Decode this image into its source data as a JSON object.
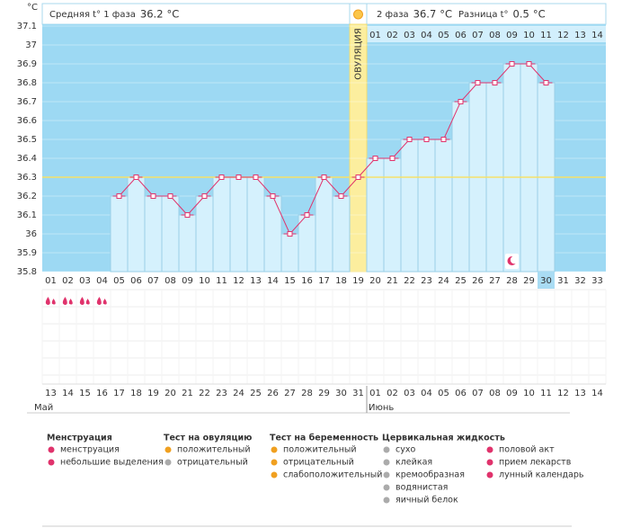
{
  "chart_data": {
    "type": "line",
    "y_unit": "°C",
    "header": {
      "phase1": {
        "label": "Средняя t° 1 фаза",
        "value": 36.2,
        "unit": "°C"
      },
      "phase2": {
        "label": "2 фаза",
        "value": 36.7,
        "unit": "°C"
      },
      "diff": {
        "label": "Разница t°",
        "value": 0.5,
        "unit": "°C"
      }
    },
    "categories": [
      "01",
      "02",
      "03",
      "04",
      "05",
      "06",
      "07",
      "08",
      "09",
      "10",
      "11",
      "12",
      "13",
      "14",
      "15",
      "16",
      "17",
      "18",
      "19",
      "20",
      "21",
      "22",
      "23",
      "24",
      "25",
      "26",
      "27",
      "28",
      "29",
      "30",
      "31",
      "32",
      "33"
    ],
    "values": [
      null,
      null,
      null,
      null,
      36.2,
      36.3,
      36.2,
      36.2,
      36.1,
      36.2,
      36.3,
      36.3,
      36.3,
      36.2,
      36.0,
      36.1,
      36.3,
      36.2,
      36.3,
      36.4,
      36.4,
      36.5,
      36.5,
      36.5,
      36.7,
      36.8,
      36.8,
      36.9,
      36.9,
      36.8,
      null,
      null,
      null
    ],
    "color": "#e0336c",
    "ylim": [
      35.8,
      37.1
    ],
    "yticks": [
      35.8,
      35.9,
      36,
      36.1,
      36.2,
      36.3,
      36.4,
      36.5,
      36.6,
      36.7,
      36.8,
      36.9,
      37,
      37.1
    ],
    "coverline": 36.3,
    "ovulation": {
      "index": 18,
      "label": "ОВУЛЯЦИЯ"
    },
    "phase2_days": [
      "01",
      "02",
      "03",
      "04",
      "05",
      "06",
      "07",
      "08",
      "09",
      "10",
      "11",
      "12",
      "13",
      "14"
    ],
    "today_index": 29,
    "menstruation_days": [
      0,
      1,
      2,
      3
    ],
    "moon_days": [
      27
    ],
    "dates": [
      {
        "label": "13",
        "weekend": false
      },
      {
        "label": "14",
        "weekend": false
      },
      {
        "label": "15",
        "weekend": false
      },
      {
        "label": "16",
        "weekend": false
      },
      {
        "label": "17",
        "weekend": false
      },
      {
        "label": "18",
        "weekend": true
      },
      {
        "label": "19",
        "weekend": true
      },
      {
        "label": "20",
        "weekend": false
      },
      {
        "label": "21",
        "weekend": false
      },
      {
        "label": "22",
        "weekend": false
      },
      {
        "label": "23",
        "weekend": false
      },
      {
        "label": "24",
        "weekend": false
      },
      {
        "label": "25",
        "weekend": true
      },
      {
        "label": "26",
        "weekend": true
      },
      {
        "label": "27",
        "weekend": false
      },
      {
        "label": "28",
        "weekend": false
      },
      {
        "label": "29",
        "weekend": false
      },
      {
        "label": "30",
        "weekend": false
      },
      {
        "label": "31",
        "weekend": false
      },
      {
        "label": "01",
        "weekend": true
      },
      {
        "label": "02",
        "weekend": true
      },
      {
        "label": "03",
        "weekend": false
      },
      {
        "label": "04",
        "weekend": false
      },
      {
        "label": "05",
        "weekend": false
      },
      {
        "label": "06",
        "weekend": false
      },
      {
        "label": "07",
        "weekend": false
      },
      {
        "label": "08",
        "weekend": true
      },
      {
        "label": "09",
        "weekend": true
      },
      {
        "label": "10",
        "weekend": false
      },
      {
        "label": "11",
        "weekend": false
      },
      {
        "label": "12",
        "weekend": false
      },
      {
        "label": "13",
        "weekend": false
      },
      {
        "label": "14",
        "weekend": false
      }
    ],
    "months": [
      {
        "label": "Май",
        "index": 0
      },
      {
        "label": "Июнь",
        "index": 19
      }
    ],
    "legend": [
      {
        "title": "Менструация",
        "items": [
          "менструация",
          "небольшие выделения"
        ]
      },
      {
        "title": "Тест на овуляцию",
        "items": [
          "положительный",
          "отрицательный"
        ]
      },
      {
        "title": "Тест на беременность",
        "items": [
          "положительный",
          "отрицательный",
          "слабоположительный"
        ]
      },
      {
        "title": "Цервикальная жидкость",
        "items": [
          "сухо",
          "клейкая",
          "кремообразная",
          "водянистая",
          "яичный белок"
        ]
      },
      {
        "items": [
          "половой акт",
          "прием лекарств",
          "лунный календарь"
        ]
      }
    ]
  }
}
